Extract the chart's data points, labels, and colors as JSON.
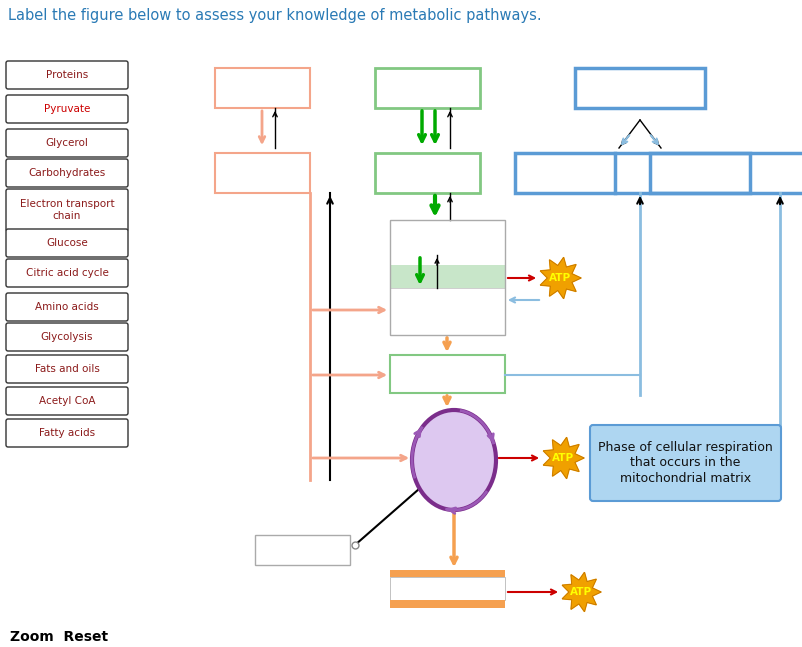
{
  "title": "Label the figure below to assess your knowledge of metabolic pathways.",
  "title_color": "#2a7ab5",
  "title_fontsize": 10.5,
  "sidebar_labels": [
    "Proteins",
    "Pyruvate",
    "Glycerol",
    "Carbohydrates",
    "Electron transport\nchain",
    "Glucose",
    "Citric acid cycle",
    "Amino acids",
    "Glycolysis",
    "Fats and oils",
    "Acetyl CoA",
    "Fatty acids"
  ],
  "bg_color": "#ffffff",
  "zoom_reset_text": "Zoom  Reset",
  "info_box_text": "Phase of cellular respiration\nthat occurs in the\nmitochondrial matrix"
}
